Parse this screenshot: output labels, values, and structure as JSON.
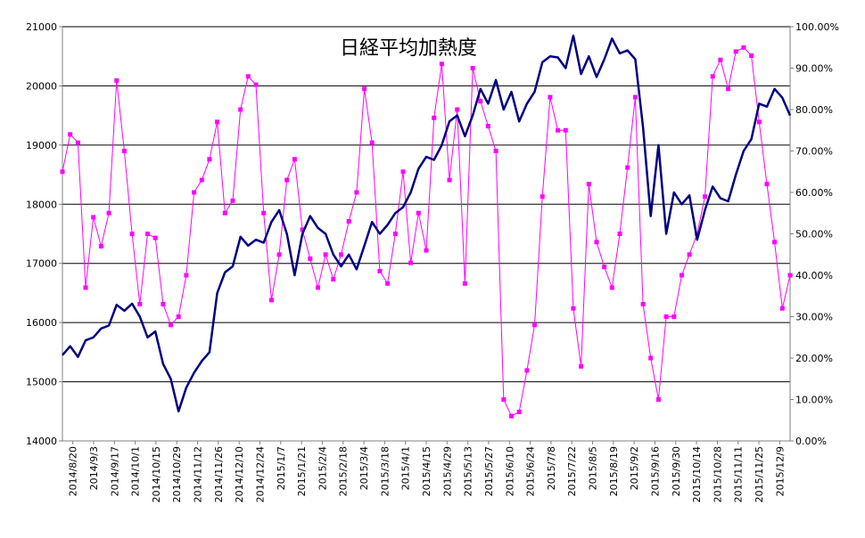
{
  "chart_data": {
    "type": "line",
    "title": "日経平均加熱度",
    "grid": true,
    "colors": {
      "price": "#000080",
      "heat": "#ff00ff"
    },
    "y_left": {
      "range": [
        14000,
        21000
      ],
      "ticks": [
        14000,
        15000,
        16000,
        17000,
        18000,
        19000,
        20000,
        21000
      ],
      "tick_labels": [
        "14000",
        "15000",
        "16000",
        "17000",
        "18000",
        "19000",
        "20000",
        "21000"
      ]
    },
    "y_right": {
      "range": [
        0,
        100
      ],
      "ticks": [
        0,
        10,
        20,
        30,
        40,
        50,
        60,
        70,
        80,
        90,
        100
      ],
      "tick_labels": [
        "0.00%",
        "10.00%",
        "20.00%",
        "30.00%",
        "40.00%",
        "50.00%",
        "60.00%",
        "70.00%",
        "80.00%",
        "90.00%",
        "100.00%"
      ]
    },
    "x_tick_labels": [
      "2014/8/20",
      "2014/9/3",
      "2014/9/17",
      "2014/10/1",
      "2014/10/15",
      "2014/10/29",
      "2014/11/12",
      "2014/11/26",
      "2014/12/10",
      "2014/12/24",
      "2015/1/7",
      "2015/1/21",
      "2015/2/4",
      "2015/2/18",
      "2015/3/4",
      "2015/3/18",
      "2015/4/1",
      "2015/4/15",
      "2015/4/29",
      "2015/5/13",
      "2015/5/27",
      "2015/6/10",
      "2015/6/24",
      "2015/7/8",
      "2015/7/22",
      "2015/8/5",
      "2015/8/19",
      "2015/9/2",
      "2015/9/16",
      "2015/9/30",
      "2015/10/14",
      "2015/10/28",
      "2015/11/11",
      "2015/11/25",
      "2015/12/9"
    ],
    "series": [
      {
        "axis": "left",
        "points": [
          [
            0,
            15450
          ],
          [
            1,
            15600
          ],
          [
            2,
            15420
          ],
          [
            3,
            15700
          ],
          [
            4,
            15750
          ],
          [
            5,
            15900
          ],
          [
            6,
            15950
          ],
          [
            7,
            16300
          ],
          [
            8,
            16200
          ],
          [
            9,
            16320
          ],
          [
            10,
            16100
          ],
          [
            11,
            15750
          ],
          [
            12,
            15850
          ],
          [
            13,
            15300
          ],
          [
            14,
            15050
          ],
          [
            15,
            14500
          ],
          [
            16,
            14900
          ],
          [
            17,
            15150
          ],
          [
            18,
            15350
          ],
          [
            19,
            15500
          ],
          [
            20,
            16500
          ],
          [
            21,
            16850
          ],
          [
            22,
            16950
          ],
          [
            23,
            17450
          ],
          [
            24,
            17300
          ],
          [
            25,
            17400
          ],
          [
            26,
            17350
          ],
          [
            27,
            17700
          ],
          [
            28,
            17900
          ],
          [
            29,
            17500
          ],
          [
            30,
            16800
          ],
          [
            31,
            17500
          ],
          [
            32,
            17800
          ],
          [
            33,
            17600
          ],
          [
            34,
            17500
          ],
          [
            35,
            17150
          ],
          [
            36,
            16950
          ],
          [
            37,
            17150
          ],
          [
            38,
            16900
          ],
          [
            39,
            17300
          ],
          [
            40,
            17700
          ],
          [
            41,
            17500
          ],
          [
            42,
            17650
          ],
          [
            43,
            17850
          ],
          [
            44,
            17950
          ],
          [
            45,
            18200
          ],
          [
            46,
            18600
          ],
          [
            47,
            18800
          ],
          [
            48,
            18750
          ],
          [
            49,
            19000
          ],
          [
            50,
            19400
          ],
          [
            51,
            19500
          ],
          [
            52,
            19150
          ],
          [
            53,
            19500
          ],
          [
            54,
            19950
          ],
          [
            55,
            19700
          ],
          [
            56,
            20100
          ],
          [
            57,
            19600
          ],
          [
            58,
            19900
          ],
          [
            59,
            19400
          ],
          [
            60,
            19700
          ],
          [
            61,
            19900
          ],
          [
            62,
            20400
          ],
          [
            63,
            20500
          ],
          [
            64,
            20480
          ],
          [
            65,
            20300
          ],
          [
            66,
            20850
          ],
          [
            67,
            20200
          ],
          [
            68,
            20500
          ],
          [
            69,
            20150
          ],
          [
            70,
            20450
          ],
          [
            71,
            20800
          ],
          [
            72,
            20550
          ],
          [
            73,
            20600
          ],
          [
            74,
            20450
          ],
          [
            75,
            19300
          ],
          [
            76,
            17800
          ],
          [
            77,
            19000
          ],
          [
            78,
            17500
          ],
          [
            79,
            18200
          ],
          [
            80,
            18000
          ],
          [
            81,
            18150
          ],
          [
            82,
            17400
          ],
          [
            83,
            17900
          ],
          [
            84,
            18300
          ],
          [
            85,
            18100
          ],
          [
            86,
            18050
          ],
          [
            87,
            18500
          ],
          [
            88,
            18900
          ],
          [
            89,
            19100
          ],
          [
            90,
            19700
          ],
          [
            91,
            19650
          ],
          [
            92,
            19950
          ],
          [
            93,
            19800
          ],
          [
            94,
            19500
          ]
        ]
      },
      {
        "axis": "right",
        "points": [
          [
            0,
            65
          ],
          [
            1,
            74
          ],
          [
            2,
            72
          ],
          [
            3,
            37
          ],
          [
            4,
            54
          ],
          [
            5,
            47
          ],
          [
            6,
            55
          ],
          [
            7,
            87
          ],
          [
            8,
            70
          ],
          [
            9,
            50
          ],
          [
            10,
            33
          ],
          [
            11,
            50
          ],
          [
            12,
            49
          ],
          [
            13,
            33
          ],
          [
            14,
            28
          ],
          [
            15,
            30
          ],
          [
            16,
            40
          ],
          [
            17,
            60
          ],
          [
            18,
            63
          ],
          [
            19,
            68
          ],
          [
            20,
            77
          ],
          [
            21,
            55
          ],
          [
            22,
            58
          ],
          [
            23,
            80
          ],
          [
            24,
            88
          ],
          [
            25,
            86
          ],
          [
            26,
            55
          ],
          [
            27,
            34
          ],
          [
            28,
            45
          ],
          [
            29,
            63
          ],
          [
            30,
            68
          ],
          [
            31,
            51
          ],
          [
            32,
            44
          ],
          [
            33,
            37
          ],
          [
            34,
            45
          ],
          [
            35,
            39
          ],
          [
            36,
            45
          ],
          [
            37,
            53
          ],
          [
            38,
            60
          ],
          [
            39,
            85
          ],
          [
            40,
            72
          ],
          [
            41,
            41
          ],
          [
            42,
            38
          ],
          [
            43,
            50
          ],
          [
            44,
            65
          ],
          [
            45,
            43
          ],
          [
            46,
            55
          ],
          [
            47,
            46
          ],
          [
            48,
            78
          ],
          [
            49,
            91
          ],
          [
            50,
            63
          ],
          [
            51,
            80
          ],
          [
            52,
            38
          ],
          [
            53,
            90
          ],
          [
            54,
            82
          ],
          [
            55,
            76
          ],
          [
            56,
            70
          ],
          [
            57,
            10
          ],
          [
            58,
            6
          ],
          [
            59,
            7
          ],
          [
            60,
            17
          ],
          [
            61,
            28
          ],
          [
            62,
            59
          ],
          [
            63,
            83
          ],
          [
            64,
            75
          ],
          [
            65,
            75
          ],
          [
            66,
            32
          ],
          [
            67,
            18
          ],
          [
            68,
            62
          ],
          [
            69,
            48
          ],
          [
            70,
            42
          ],
          [
            71,
            37
          ],
          [
            72,
            50
          ],
          [
            73,
            66
          ],
          [
            74,
            83
          ],
          [
            75,
            33
          ],
          [
            76,
            20
          ],
          [
            77,
            10
          ],
          [
            78,
            30
          ],
          [
            79,
            30
          ],
          [
            80,
            40
          ],
          [
            81,
            45
          ],
          [
            82,
            50
          ],
          [
            83,
            59
          ],
          [
            84,
            88
          ],
          [
            85,
            92
          ],
          [
            86,
            85
          ],
          [
            87,
            94
          ],
          [
            88,
            95
          ],
          [
            89,
            93
          ],
          [
            90,
            77
          ],
          [
            91,
            62
          ],
          [
            92,
            48
          ],
          [
            93,
            32
          ],
          [
            94,
            40
          ]
        ]
      }
    ]
  }
}
